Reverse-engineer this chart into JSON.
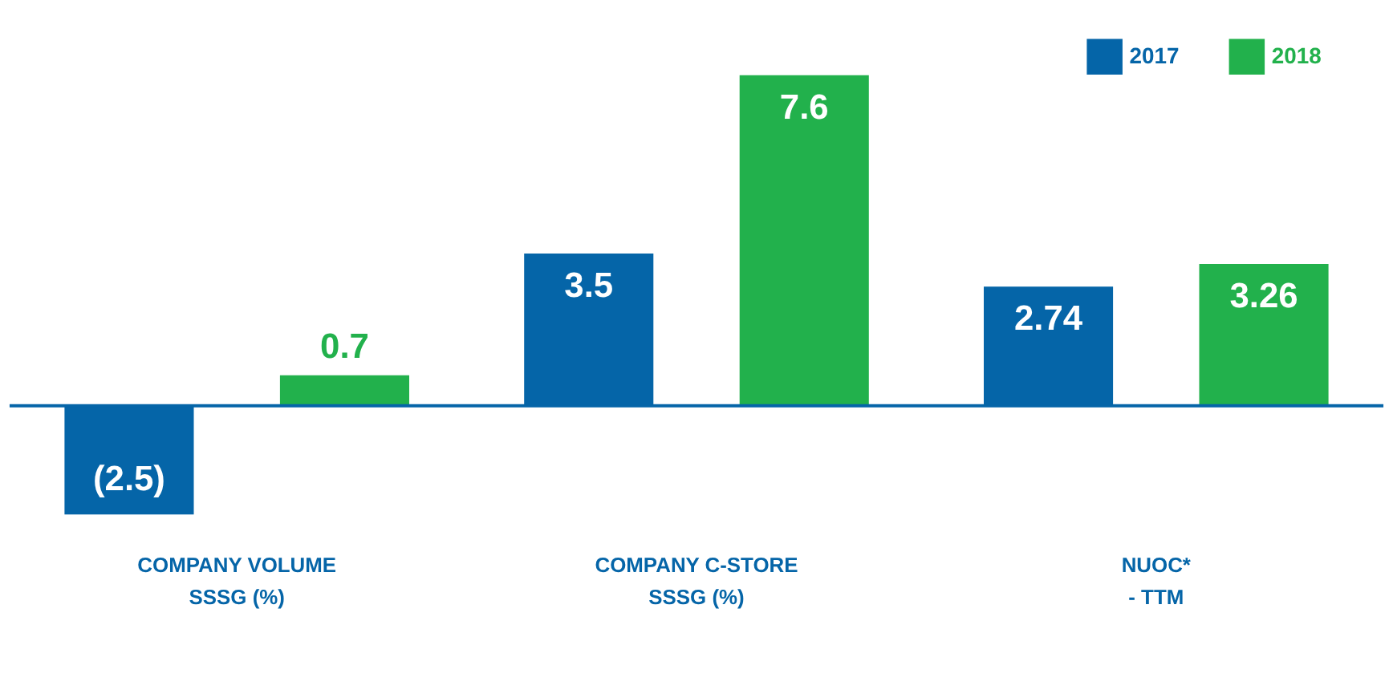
{
  "chart_data": {
    "type": "bar",
    "categories": [
      "COMPANY VOLUME\nSSSG (%)",
      "COMPANY C-STORE\nSSSG (%)",
      "NUOC*\n- TTM"
    ],
    "series": [
      {
        "name": "2017",
        "color": "#0565a8",
        "values": [
          -2.5,
          3.5,
          2.74
        ],
        "value_labels": [
          "(2.5)",
          "3.5",
          "2.74"
        ]
      },
      {
        "name": "2018",
        "color": "#22b14c",
        "values": [
          0.7,
          7.6,
          3.26
        ],
        "value_labels": [
          "0.7",
          "7.6",
          "3.26"
        ]
      }
    ],
    "ref_lines": [
      {
        "axis": "y",
        "value": 0,
        "color": "#0565a8"
      }
    ],
    "legend": "top right",
    "grid": false
  }
}
